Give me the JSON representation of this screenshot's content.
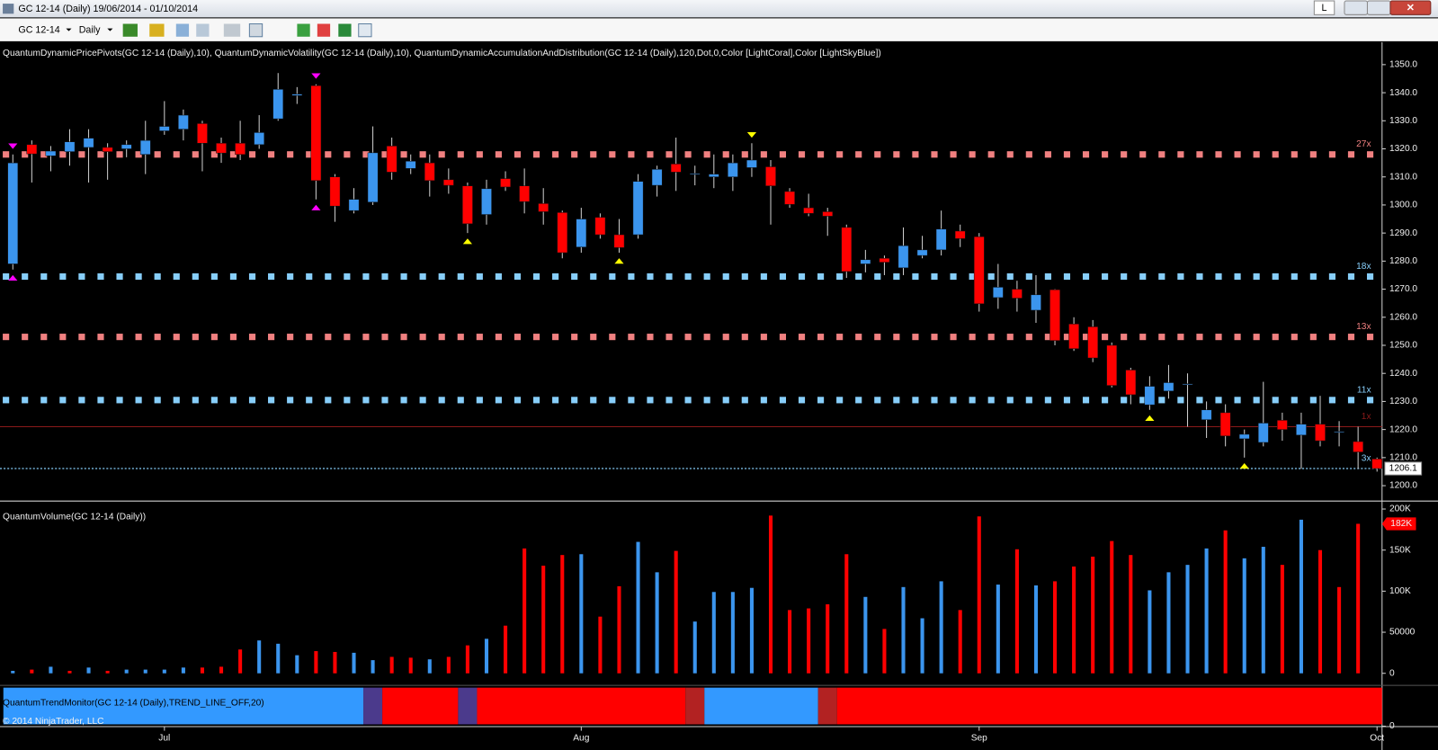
{
  "window": {
    "title": "GC 12-14 (Daily)  19/06/2014 - 01/10/2014",
    "button": "L"
  },
  "toolbar": {
    "instrument": "GC 12-14",
    "period": "Daily"
  },
  "copyright": "© 2014 NinjaTrader, LLC",
  "chart_data": [
    {
      "type": "candlestick",
      "title": "QuantumDynamicPricePivots(GC 12-14 (Daily),10), QuantumDynamicVolatility(GC 12-14 (Daily),10), QuantumDynamicAccumulationAndDistribution(GC 12-14 (Daily),120,Dot,0,Color [LightCoral],Color [LightSkyBlue])",
      "categories": [
        null,
        null,
        null,
        null,
        null,
        null,
        null,
        null,
        "Jul",
        null,
        null,
        null,
        null,
        null,
        null,
        null,
        null,
        null,
        null,
        null,
        null,
        null,
        null,
        null,
        null,
        null,
        null,
        null,
        null,
        null,
        "Aug",
        null,
        null,
        null,
        null,
        null,
        null,
        null,
        null,
        null,
        null,
        null,
        null,
        null,
        null,
        null,
        null,
        null,
        null,
        null,
        null,
        "Sep",
        null,
        null,
        null,
        null,
        null,
        null,
        null,
        null,
        null,
        null,
        null,
        null,
        null,
        null,
        null,
        null,
        null,
        null,
        null,
        null,
        "Oct"
      ],
      "open": [
        1279,
        1321.5,
        1317.5,
        1319,
        1320.5,
        1320.5,
        1320,
        1318,
        1326.4,
        1327,
        1329,
        1322,
        1322,
        1321.5,
        1330.7,
        1339,
        1342.5,
        1310,
        1298,
        1301,
        1321,
        1313,
        1315,
        1309,
        1306.8,
        1296.6,
        1309.4,
        1306.8,
        1300.5,
        1297.3,
        1285,
        1295.6,
        1289.4,
        1289.4,
        1307,
        1314.6,
        1311,
        1310,
        1310,
        1313.3,
        1313.6,
        1304.8,
        1299,
        1297.6,
        1292,
        1279,
        1281,
        1277.6,
        1282,
        1284,
        1290.7,
        1288.7,
        1267,
        1270,
        1262.5,
        1269.8,
        1257.6,
        1256.6,
        1250,
        1241.2,
        1228.8,
        1233.7,
        1236,
        1223.5,
        1226,
        1216.7,
        1215.4,
        1223.3,
        1218,
        1221.9,
        1219,
        1215.7,
        1209.5
      ],
      "high": [
        1318,
        1323,
        1321,
        1327,
        1327,
        1322,
        1323,
        1330,
        1337,
        1334,
        1330,
        1324,
        1330,
        1332,
        1347,
        1342,
        1343,
        1311,
        1306,
        1328,
        1324,
        1318,
        1318,
        1313,
        1308,
        1309,
        1312,
        1313,
        1306,
        1298,
        1299,
        1297,
        1295,
        1311,
        1314,
        1324,
        1314,
        1318,
        1318,
        1322,
        1316,
        1306,
        1304,
        1299,
        1293,
        1284,
        1282,
        1292,
        1289,
        1298,
        1293,
        1290,
        1279,
        1273,
        1275,
        1270,
        1260,
        1259,
        1251,
        1242,
        1239,
        1243,
        1240,
        1230,
        1229,
        1220,
        1237,
        1226,
        1226,
        1232,
        1223,
        1221,
        1210
      ],
      "low": [
        1277,
        1308,
        1312,
        1314,
        1308,
        1309,
        1317,
        1311,
        1325,
        1323,
        1312,
        1315,
        1316,
        1320,
        1330,
        1336,
        1302,
        1294,
        1297,
        1300,
        1309,
        1311,
        1303,
        1304,
        1290,
        1293,
        1305,
        1297,
        1293,
        1281,
        1283,
        1288,
        1283,
        1288,
        1303,
        1305,
        1307,
        1306,
        1305,
        1310,
        1293,
        1299,
        1296,
        1289,
        1274,
        1276,
        1275,
        1275,
        1281,
        1282,
        1285,
        1262,
        1263,
        1262,
        1258,
        1250,
        1248,
        1244,
        1235,
        1229,
        1227,
        1231,
        1221,
        1217,
        1214,
        1210,
        1214,
        1216,
        1206,
        1214,
        1214,
        1206,
        1205
      ],
      "close": [
        1315,
        1318.2,
        1319.2,
        1322.5,
        1323.8,
        1319,
        1321.5,
        1323,
        1328,
        1332,
        1322,
        1318.5,
        1318,
        1325.8,
        1341.2,
        1339.5,
        1308.7,
        1299.6,
        1302,
        1318.6,
        1311.7,
        1315.6,
        1308.7,
        1307,
        1293.3,
        1305.8,
        1306.4,
        1301.2,
        1297.6,
        1283,
        1295,
        1289.4,
        1284.8,
        1308.4,
        1312.7,
        1311.7,
        1311.2,
        1311,
        1315,
        1316,
        1306.8,
        1300.2,
        1297,
        1296,
        1276.3,
        1280.5,
        1279.6,
        1285.5,
        1284,
        1291.4,
        1288,
        1264.8,
        1270.7,
        1266.8,
        1268,
        1251.7,
        1248.8,
        1245.5,
        1235.7,
        1232.4,
        1235.4,
        1236.7,
        1236.3,
        1227,
        1217.7,
        1218.3,
        1222.3,
        1220,
        1221.9,
        1216,
        1219.3,
        1212,
        1206.1
      ],
      "up_color": "#3b95ee",
      "down_color": "#ff0000",
      "ylim": [
        1195,
        1358
      ],
      "yticks": [
        {
          "value": 1200,
          "label": "1200.0"
        },
        {
          "value": 1210,
          "label": "1210.0"
        },
        {
          "value": 1220,
          "label": "1220.0"
        },
        {
          "value": 1230,
          "label": "1230.0"
        },
        {
          "value": 1240,
          "label": "1240.0"
        },
        {
          "value": 1250,
          "label": "1250.0"
        },
        {
          "value": 1260,
          "label": "1260.0"
        },
        {
          "value": 1270,
          "label": "1270.0"
        },
        {
          "value": 1280,
          "label": "1280.0"
        },
        {
          "value": 1290,
          "label": "1290.0"
        },
        {
          "value": 1300,
          "label": "1300.0"
        },
        {
          "value": 1310,
          "label": "1310.0"
        },
        {
          "value": 1320,
          "label": "1320.0"
        },
        {
          "value": 1330,
          "label": "1330.0"
        },
        {
          "value": 1340,
          "label": "1340.0"
        },
        {
          "value": 1350,
          "label": "1350.0"
        }
      ],
      "levels": [
        {
          "value": 1318,
          "label": "27x",
          "color": "#f08080",
          "style": "dots"
        },
        {
          "value": 1274.5,
          "label": "18x",
          "color": "#87cefa",
          "style": "dots"
        },
        {
          "value": 1253,
          "label": "13x",
          "color": "#f08080",
          "style": "dots"
        },
        {
          "value": 1230.5,
          "label": "11x",
          "color": "#87cefa",
          "style": "dots"
        },
        {
          "value": 1221,
          "label": "1x",
          "color": "#8b1a1a",
          "style": "line"
        },
        {
          "value": 1206.1,
          "label": "3x",
          "color": "#87cefa",
          "style": "dotted"
        }
      ],
      "current_price": 1206.1,
      "signals": [
        {
          "index": 0,
          "at": "high",
          "color": "#ff00ff"
        },
        {
          "index": 0,
          "at": "low",
          "color": "#ff00ff"
        },
        {
          "index": 16,
          "at": "high",
          "color": "#ff00ff"
        },
        {
          "index": 16,
          "at": "low",
          "color": "#ff00ff"
        },
        {
          "index": 24,
          "at": "low",
          "color": "#ffff00"
        },
        {
          "index": 32,
          "at": "low",
          "color": "#ffff00"
        },
        {
          "index": 39,
          "at": "high",
          "color": "#ffff00"
        },
        {
          "index": 60,
          "at": "low",
          "color": "#ffff00"
        },
        {
          "index": 65,
          "at": "low",
          "color": "#ffff00"
        }
      ]
    },
    {
      "type": "bar",
      "title": "QuantumVolume(GC 12-14 (Daily))",
      "values": [
        3000,
        4500,
        8000,
        3000,
        7000,
        3000,
        4500,
        4500,
        4500,
        7000,
        7000,
        8000,
        29000,
        40000,
        36000,
        22000,
        27000,
        26000,
        25000,
        16000,
        20000,
        19000,
        17000,
        20000,
        34000,
        42000,
        58000,
        152000,
        131000,
        144000,
        145000,
        69000,
        106000,
        160000,
        123000,
        149000,
        63000,
        99000,
        99000,
        104000,
        192000,
        77000,
        79000,
        84000,
        145000,
        93000,
        54000,
        105000,
        67000,
        112000,
        77000,
        191000,
        108000,
        151000,
        107000,
        112000,
        130000,
        142000,
        161000,
        144000,
        101000,
        123000,
        132000,
        152000,
        174000,
        140000,
        154000,
        132000,
        187000,
        150000,
        105000,
        182000,
        null
      ],
      "colors": [
        "#3b95ee",
        "#ff0000",
        "#3b95ee",
        "#ff0000",
        "#3b95ee",
        "#ff0000",
        "#3b95ee",
        "#3b95ee",
        "#3b95ee",
        "#3b95ee",
        "#ff0000",
        "#ff0000",
        "#ff0000",
        "#3b95ee",
        "#3b95ee",
        "#3b95ee",
        "#ff0000",
        "#ff0000",
        "#3b95ee",
        "#3b95ee",
        "#ff0000",
        "#ff0000",
        "#3b95ee",
        "#ff0000",
        "#ff0000",
        "#3b95ee",
        "#ff0000",
        "#ff0000",
        "#ff0000",
        "#ff0000",
        "#3b95ee",
        "#ff0000",
        "#ff0000",
        "#3b95ee",
        "#3b95ee",
        "#ff0000",
        "#3b95ee",
        "#3b95ee",
        "#3b95ee",
        "#3b95ee",
        "#ff0000",
        "#ff0000",
        "#ff0000",
        "#ff0000",
        "#ff0000",
        "#3b95ee",
        "#ff0000",
        "#3b95ee",
        "#3b95ee",
        "#3b95ee",
        "#ff0000",
        "#ff0000",
        "#3b95ee",
        "#ff0000",
        "#3b95ee",
        "#ff0000",
        "#ff0000",
        "#ff0000",
        "#ff0000",
        "#ff0000",
        "#3b95ee",
        "#3b95ee",
        "#3b95ee",
        "#3b95ee",
        "#ff0000",
        "#3b95ee",
        "#3b95ee",
        "#ff0000",
        "#3b95ee",
        "#ff0000",
        "#ff0000",
        "#ff0000",
        null
      ],
      "value_labels": [
        null,
        null,
        null,
        null,
        null,
        null,
        null,
        null,
        null,
        null,
        null,
        null,
        null,
        null,
        null,
        null,
        null,
        null,
        null,
        null,
        null,
        null,
        null,
        null,
        null,
        null,
        null,
        null,
        null,
        null,
        null,
        null,
        null,
        null,
        null,
        null,
        null,
        null,
        null,
        null,
        null,
        null,
        null,
        null,
        null,
        null,
        null,
        null,
        null,
        null,
        null,
        null,
        null,
        null,
        null,
        null,
        null,
        null,
        null,
        null,
        null,
        null,
        null,
        null,
        null,
        null,
        null,
        null,
        null,
        null,
        null,
        "182K",
        null
      ],
      "ylim": [
        -13000,
        208000
      ],
      "yticks": [
        0,
        50000,
        {
          "value": 100000,
          "label": "100K"
        },
        {
          "value": 150000,
          "label": "150K"
        },
        {
          "value": 200000,
          "label": "200K"
        }
      ]
    },
    {
      "type": "band",
      "title": "QuantumTrendMonitor(GC 12-14 (Daily),TREND_LINE_OFF,20)",
      "segments": [
        {
          "start": 0,
          "end": 18,
          "color": "#3399ff"
        },
        {
          "start": 19,
          "end": 19,
          "color": "#4b3a8c"
        },
        {
          "start": 20,
          "end": 23,
          "color": "#ff0000"
        },
        {
          "start": 24,
          "end": 24,
          "color": "#4b3a8c"
        },
        {
          "start": 25,
          "end": 35,
          "color": "#ff0000"
        },
        {
          "start": 36,
          "end": 36,
          "color": "#b22222"
        },
        {
          "start": 37,
          "end": 42,
          "color": "#3399ff"
        },
        {
          "start": 43,
          "end": 43,
          "color": "#b22222"
        },
        {
          "start": 44,
          "end": 72,
          "color": "#ff0000"
        }
      ],
      "yticks": [
        0
      ]
    }
  ]
}
